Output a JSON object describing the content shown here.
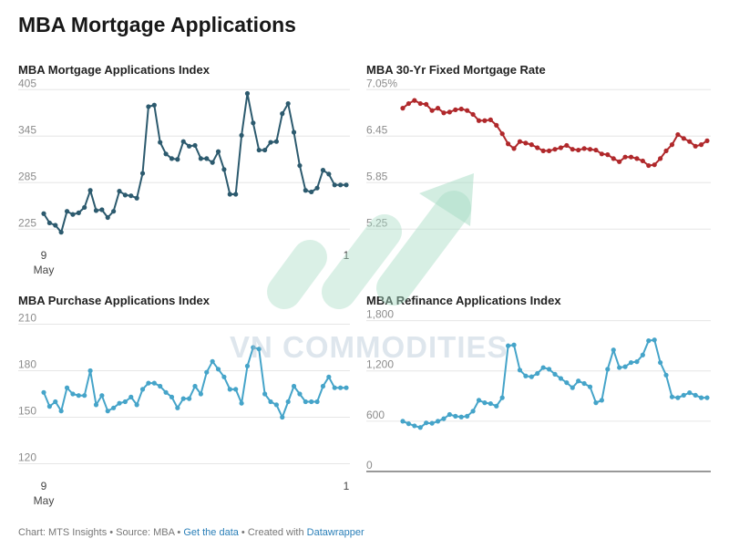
{
  "page": {
    "title": "MBA Mortgage Applications"
  },
  "footer": {
    "prefix": "Chart: MTS Insights • Source: MBA • ",
    "link1": "Get the data",
    "middle": " • Created with ",
    "link2": "Datawrapper"
  },
  "watermark": {
    "text": "VN COMMODITIES"
  },
  "chart_data": [
    {
      "id": "index",
      "type": "line",
      "title": "MBA Mortgage Applications Index",
      "color": "#2c5a6e",
      "markers": true,
      "ylim": [
        210,
        410
      ],
      "yticks": [
        225,
        285,
        345,
        405
      ],
      "ytick_labels": [
        "225",
        "285",
        "345",
        "405"
      ],
      "x_labels": {
        "first": "9",
        "first_sub": "May",
        "last": "1",
        "last_sub": ""
      },
      "x": [
        0,
        1,
        2,
        3,
        4,
        5,
        6,
        7,
        8,
        9,
        10,
        11,
        12,
        13,
        14,
        15,
        16,
        17,
        18,
        19,
        20,
        21,
        22,
        23,
        24,
        25,
        26,
        27,
        28,
        29,
        30,
        31,
        32,
        33,
        34,
        35,
        36,
        37,
        38,
        39,
        40,
        41,
        42,
        43,
        44,
        45,
        46,
        47,
        48,
        49,
        50,
        51,
        52
      ],
      "values": [
        245,
        233,
        230,
        221,
        248,
        244,
        246,
        253,
        275,
        249,
        250,
        240,
        248,
        274,
        269,
        268,
        265,
        297,
        383,
        385,
        337,
        322,
        316,
        315,
        338,
        332,
        333,
        316,
        316,
        311,
        325,
        302,
        270,
        270,
        346,
        400,
        362,
        327,
        327,
        337,
        338,
        374,
        387,
        350,
        307,
        275,
        273,
        278,
        301,
        296,
        282,
        282,
        282
      ]
    },
    {
      "id": "rate",
      "type": "line",
      "title": "MBA 30-Yr Fixed Mortgage Rate",
      "color": "#b0282b",
      "markers": true,
      "ylim": [
        5.1,
        7.1
      ],
      "yticks": [
        5.25,
        5.85,
        6.45,
        7.05
      ],
      "ytick_labels": [
        "5.25",
        "5.85",
        "6.45",
        "7.05%"
      ],
      "x_labels": null,
      "x": [
        0,
        1,
        2,
        3,
        4,
        5,
        6,
        7,
        8,
        9,
        10,
        11,
        12,
        13,
        14,
        15,
        16,
        17,
        18,
        19,
        20,
        21,
        22,
        23,
        24,
        25,
        26,
        27,
        28,
        29,
        30,
        31,
        32,
        33,
        34,
        35,
        36,
        37,
        38,
        39,
        40,
        41,
        42,
        43,
        44,
        45,
        46,
        47,
        48,
        49,
        50,
        51,
        52
      ],
      "values": [
        6.81,
        6.87,
        6.91,
        6.87,
        6.86,
        6.78,
        6.81,
        6.75,
        6.76,
        6.79,
        6.8,
        6.78,
        6.73,
        6.65,
        6.65,
        6.66,
        6.59,
        6.48,
        6.35,
        6.29,
        6.38,
        6.36,
        6.34,
        6.3,
        6.26,
        6.26,
        6.28,
        6.3,
        6.33,
        6.28,
        6.27,
        6.29,
        6.28,
        6.27,
        6.22,
        6.21,
        6.16,
        6.12,
        6.18,
        6.18,
        6.16,
        6.13,
        6.07,
        6.08,
        6.16,
        6.26,
        6.34,
        6.47,
        6.42,
        6.38,
        6.32,
        6.34,
        6.39
      ]
    },
    {
      "id": "purchase",
      "type": "line",
      "title": "MBA Purchase Applications Index",
      "color": "#45a4c9",
      "markers": true,
      "ylim": [
        115,
        215
      ],
      "yticks": [
        120,
        150,
        180,
        210
      ],
      "ytick_labels": [
        "120",
        "150",
        "180",
        "210"
      ],
      "x_labels": {
        "first": "9",
        "first_sub": "May",
        "last": "1",
        "last_sub": ""
      },
      "x": [
        0,
        1,
        2,
        3,
        4,
        5,
        6,
        7,
        8,
        9,
        10,
        11,
        12,
        13,
        14,
        15,
        16,
        17,
        18,
        19,
        20,
        21,
        22,
        23,
        24,
        25,
        26,
        27,
        28,
        29,
        30,
        31,
        32,
        33,
        34,
        35,
        36,
        37,
        38,
        39,
        40,
        41,
        42,
        43,
        44,
        45,
        46,
        47,
        48,
        49,
        50,
        51,
        52
      ],
      "values": [
        166,
        157,
        160,
        154,
        169,
        165,
        164,
        164,
        180,
        158,
        164,
        154,
        156,
        159,
        160,
        163,
        158,
        168,
        172,
        172,
        170,
        166,
        163,
        156,
        162,
        162,
        170,
        165,
        179,
        186,
        181,
        176,
        168,
        168,
        159,
        183,
        195,
        194,
        165,
        160,
        158,
        150,
        160,
        170,
        165,
        160,
        160,
        160,
        170,
        176,
        169,
        169,
        169
      ]
    },
    {
      "id": "refinance",
      "type": "line",
      "title": "MBA Refinance Applications Index",
      "color": "#45a4c9",
      "markers": true,
      "ylim": [
        0,
        1850
      ],
      "yticks": [
        0,
        600,
        1200,
        1800
      ],
      "ytick_labels": [
        "0",
        "600",
        "1,200",
        "1,800"
      ],
      "baseline": true,
      "x_labels": null,
      "x": [
        0,
        1,
        2,
        3,
        4,
        5,
        6,
        7,
        8,
        9,
        10,
        11,
        12,
        13,
        14,
        15,
        16,
        17,
        18,
        19,
        20,
        21,
        22,
        23,
        24,
        25,
        26,
        27,
        28,
        29,
        30,
        31,
        32,
        33,
        34,
        35,
        36,
        37,
        38,
        39,
        40,
        41,
        42,
        43,
        44,
        45,
        46,
        47,
        48,
        49,
        50,
        51,
        52
      ],
      "values": [
        600,
        570,
        545,
        525,
        580,
        575,
        600,
        630,
        680,
        660,
        650,
        660,
        720,
        850,
        820,
        810,
        780,
        880,
        1500,
        1510,
        1210,
        1140,
        1130,
        1170,
        1240,
        1220,
        1160,
        1110,
        1060,
        1000,
        1080,
        1050,
        1010,
        820,
        850,
        1220,
        1450,
        1240,
        1250,
        1300,
        1310,
        1390,
        1560,
        1570,
        1300,
        1150,
        890,
        880,
        910,
        940,
        910,
        880,
        880
      ]
    }
  ]
}
